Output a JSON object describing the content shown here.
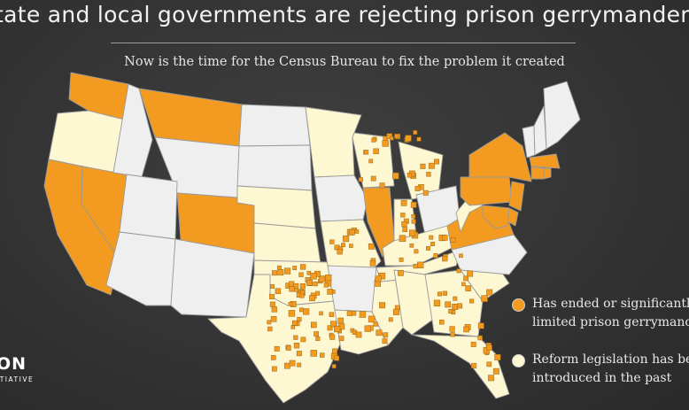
{
  "header": {
    "title": "tate and local governments are rejecting prison gerrymanderin",
    "subtitle": "Now is the time for the Census Bureau to fix the problem it created"
  },
  "legend": {
    "ended_label": "Has ended or significantl limited prison gerrymanc",
    "reform_label": "Reform legislation has be introduced in the past"
  },
  "logo": {
    "main": "ON",
    "sub": "ITIATIVE"
  },
  "colors": {
    "ended": "#f39a21",
    "reform": "#fdf7d2",
    "none": "#efefef",
    "border": "#9a9a9a",
    "background": "#383838"
  },
  "map_data": {
    "states_ended": [
      "WA",
      "CA",
      "NV",
      "MT",
      "CO",
      "IL",
      "VA",
      "MD",
      "DE",
      "NJ",
      "NY",
      "PA",
      "CT",
      "RI",
      "MA"
    ],
    "states_reform": [
      "OR",
      "MN",
      "WI",
      "MI",
      "NE",
      "KS",
      "IN",
      "MO",
      "OK",
      "TX",
      "KY",
      "TN",
      "AL",
      "GA",
      "SC",
      "FL",
      "LA",
      "MS",
      "WV"
    ],
    "states_none": [
      "ID",
      "WY",
      "UT",
      "AZ",
      "NM",
      "ND",
      "SD",
      "IA",
      "OH",
      "AR",
      "NC",
      "ME",
      "NH",
      "VT"
    ],
    "local_marker_count": 210
  }
}
